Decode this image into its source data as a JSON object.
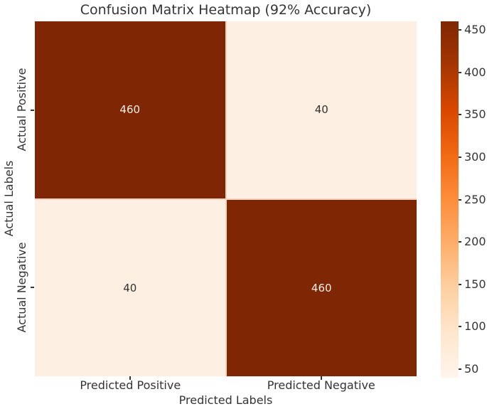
{
  "title": "Confusion Matrix Heatmap (92% Accuracy)",
  "axes": {
    "x_label": "Predicted Labels",
    "y_label": "Actual Labels",
    "x_ticks": [
      "Predicted Positive",
      "Predicted Negative"
    ],
    "y_ticks": [
      "Actual Positive",
      "Actual Negative"
    ]
  },
  "matrix": {
    "cells": [
      {
        "value": "460",
        "bg": "#7f2704",
        "text_color": "#f5efe8"
      },
      {
        "value": "40",
        "bg": "#fdf0e3",
        "text_color": "#33302d"
      },
      {
        "value": "40",
        "bg": "#fdf0e3",
        "text_color": "#33302d"
      },
      {
        "value": "460",
        "bg": "#7f2704",
        "text_color": "#f5efe8"
      }
    ]
  },
  "colorbar": {
    "ticks": [
      "450",
      "400",
      "350",
      "300",
      "250",
      "200",
      "150",
      "100",
      "50"
    ],
    "vmin": 40,
    "vmax": 460,
    "gradient_stops": [
      "#fff5eb",
      "#fee6ce",
      "#fdd0a2",
      "#fdae6b",
      "#fd8d3c",
      "#f16913",
      "#d94801",
      "#a63603",
      "#7f2704"
    ]
  },
  "colors": {
    "text": "#343434",
    "background": "#ffffff",
    "cell_edge_line": "#f2d3bf",
    "dark_cell": "#7f2704",
    "light_cell": "#fdf0e3"
  },
  "chart_data": {
    "type": "heatmap",
    "title": "Confusion Matrix Heatmap (92% Accuracy)",
    "xlabel": "Predicted Labels",
    "ylabel": "Actual Labels",
    "x_categories": [
      "Predicted Positive",
      "Predicted Negative"
    ],
    "y_categories": [
      "Actual Positive",
      "Actual Negative"
    ],
    "values": [
      [
        460,
        40
      ],
      [
        40,
        460
      ]
    ],
    "cell_annotations": [
      [
        "460",
        "40"
      ],
      [
        "40",
        "460"
      ]
    ],
    "accuracy_percent": 92,
    "colormap": "Oranges",
    "colorbar_range": [
      40,
      460
    ],
    "colorbar_ticks": [
      50,
      100,
      150,
      200,
      250,
      300,
      350,
      400,
      450
    ],
    "colorbar_position": "right",
    "grid": false
  }
}
